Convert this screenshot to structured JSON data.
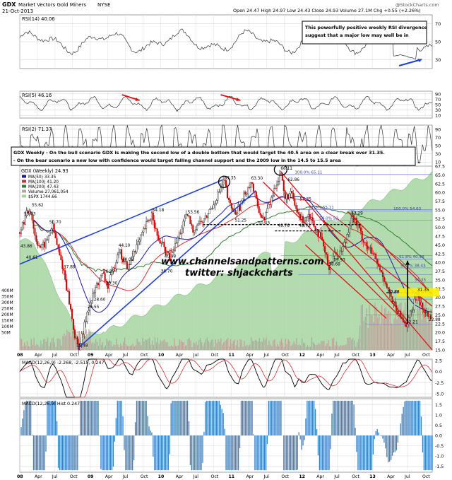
{
  "header": {
    "symbol": "GDX",
    "name": "Market Vectors Gold Miners",
    "exchange": "NYSE",
    "date": "21-Oct-2013",
    "quote": "Open 24.47  High 24.97  Low 24.43  Close 24.93  Volume 27.1M  Chg +0.55 (+2.26%)",
    "watermark": "@StockCharts.com"
  },
  "notes": {
    "rsi_note": [
      "This powerfully positive weekly RSI divergence",
      "suggest that a major low may well be in"
    ],
    "scenario": [
      "GDX Weekly - On the bull scenario GDX is making the second low of a double bottom that would target the 40.5 area on a clear break over 31.35.",
      "- On the bear scenario a new low with confidence would target falling channel support and the 2009 low in the 14.5 to 15.5 area"
    ],
    "site": "www.channelsandpatterns.com",
    "twitter": "twitter: shjackcharts"
  },
  "colors": {
    "price_up": "#111111",
    "price_down": "#cc0000",
    "ma50": "#1a1aa0",
    "ma100": "#cc3333",
    "ma200": "#2e7d32",
    "spx_fill": "#9fd49a",
    "trend_blue": "#1f3fd6",
    "trend_red": "#dd1111",
    "hist": "#3a7fc1",
    "rsi_fill": "#8b5a55"
  },
  "chart_data": {
    "type": "line",
    "title": "GDX (Weekly) 24.93",
    "legend": [
      {
        "key": "ma50",
        "label": "MA(50) 33.35"
      },
      {
        "key": "ma100",
        "label": "MA(100) 41.20"
      },
      {
        "key": "ma200",
        "label": "MA(200) 47.43"
      },
      {
        "key": "volume",
        "label": "Volume 27,061,054"
      },
      {
        "key": "spx",
        "label": "$SPX 1744.66"
      }
    ],
    "legend_placement": "top-left",
    "price_ticks": [
      15.0,
      17.5,
      20.0,
      22.5,
      25.0,
      27.5,
      30.0,
      32.5,
      35.0,
      37.5,
      40.0,
      42.5,
      45.0,
      47.5,
      50.0,
      52.5,
      55.0,
      57.5,
      60.0,
      62.5,
      65.0,
      67.5
    ],
    "ylim": [
      15.0,
      67.5
    ],
    "volume_ticks": [
      "400M",
      "350M",
      "300M",
      "250M",
      "200M",
      "150M",
      "100M",
      "50M"
    ],
    "x_ticks": [
      "08",
      "Apr",
      "Jul",
      "Oct",
      "09",
      "Apr",
      "Jul",
      "Oct",
      "10",
      "Apr",
      "Jul",
      "Oct",
      "11",
      "Apr",
      "Jul",
      "Oct",
      "12",
      "Apr",
      "Jul",
      "Oct",
      "13",
      "Apr",
      "Jul",
      "Oct"
    ],
    "price": [
      [
        2008.0,
        48.6
      ],
      [
        2008.08,
        53.0
      ],
      [
        2008.15,
        55.6
      ],
      [
        2008.22,
        47.0
      ],
      [
        2008.3,
        44.0
      ],
      [
        2008.38,
        45.8
      ],
      [
        2008.46,
        50.7
      ],
      [
        2008.55,
        43.0
      ],
      [
        2008.62,
        37.9
      ],
      [
        2008.7,
        29.0
      ],
      [
        2008.78,
        19.0
      ],
      [
        2008.83,
        15.48
      ],
      [
        2008.9,
        20.0
      ],
      [
        2008.96,
        26.55
      ],
      [
        2009.03,
        30.0
      ],
      [
        2009.1,
        34.0
      ],
      [
        2009.18,
        36.57
      ],
      [
        2009.25,
        33.0
      ],
      [
        2009.33,
        38.0
      ],
      [
        2009.4,
        44.1
      ],
      [
        2009.47,
        40.0
      ],
      [
        2009.55,
        38.5
      ],
      [
        2009.62,
        43.5
      ],
      [
        2009.7,
        46.0
      ],
      [
        2009.78,
        50.0
      ],
      [
        2009.88,
        54.18
      ],
      [
        2009.95,
        47.0
      ],
      [
        2010.05,
        44.0
      ],
      [
        2010.12,
        41.0
      ],
      [
        2010.2,
        44.5
      ],
      [
        2010.3,
        50.0
      ],
      [
        2010.38,
        53.56
      ],
      [
        2010.45,
        49.0
      ],
      [
        2010.52,
        51.0
      ],
      [
        2010.62,
        52.0
      ],
      [
        2010.7,
        55.0
      ],
      [
        2010.8,
        59.0
      ],
      [
        2010.9,
        63.35
      ],
      [
        2010.96,
        57.0
      ],
      [
        2011.05,
        54.0
      ],
      [
        2011.12,
        56.0
      ],
      [
        2011.2,
        60.0
      ],
      [
        2011.28,
        63.3
      ],
      [
        2011.36,
        57.0
      ],
      [
        2011.45,
        52.0
      ],
      [
        2011.55,
        57.0
      ],
      [
        2011.63,
        62.0
      ],
      [
        2011.7,
        66.11
      ],
      [
        2011.76,
        58.0
      ],
      [
        2011.84,
        60.0
      ],
      [
        2011.92,
        55.0
      ],
      [
        2012.0,
        52.0
      ],
      [
        2012.1,
        54.0
      ],
      [
        2012.2,
        50.0
      ],
      [
        2012.3,
        45.0
      ],
      [
        2012.38,
        38.68
      ],
      [
        2012.45,
        42.0
      ],
      [
        2012.55,
        43.0
      ],
      [
        2012.62,
        46.0
      ],
      [
        2012.7,
        53.3
      ],
      [
        2012.78,
        51.0
      ],
      [
        2012.86,
        47.0
      ],
      [
        2012.94,
        44.0
      ],
      [
        2013.02,
        42.0
      ],
      [
        2013.1,
        38.0
      ],
      [
        2013.18,
        35.0
      ],
      [
        2013.26,
        30.0
      ],
      [
        2013.34,
        26.0
      ],
      [
        2013.42,
        24.0
      ],
      [
        2013.48,
        22.21
      ],
      [
        2013.56,
        26.0
      ],
      [
        2013.64,
        31.35
      ],
      [
        2013.7,
        27.0
      ],
      [
        2013.76,
        25.5
      ],
      [
        2013.81,
        24.93
      ]
    ],
    "price_labels": [
      {
        "x": 2008.06,
        "y": 53.03,
        "text": "53.03"
      },
      {
        "x": 2008.17,
        "y": 55.62,
        "text": "55.62"
      },
      {
        "x": 2008.42,
        "y": 50.7,
        "text": "50.70"
      },
      {
        "x": 2008.01,
        "y": 43.86,
        "text": "43.86"
      },
      {
        "x": 2008.09,
        "y": 40.61,
        "text": "40.61"
      },
      {
        "x": 2008.62,
        "y": 37.88,
        "text": "37.88"
      },
      {
        "x": 2008.8,
        "y": 15.48,
        "text": "15.48"
      },
      {
        "x": 2008.96,
        "y": 26.55,
        "text": "26.55"
      },
      {
        "x": 2009.05,
        "y": 28.6,
        "text": "28.60"
      },
      {
        "x": 2009.18,
        "y": 36.57,
        "text": "36.57"
      },
      {
        "x": 2009.22,
        "y": 33.3,
        "text": "33.30"
      },
      {
        "x": 2009.4,
        "y": 44.1,
        "text": "44.10"
      },
      {
        "x": 2009.45,
        "y": 40.02,
        "text": "40.02"
      },
      {
        "x": 2009.88,
        "y": 54.18,
        "text": "54.18"
      },
      {
        "x": 2010.0,
        "y": 36.7,
        "text": "36.70"
      },
      {
        "x": 2010.05,
        "y": 40.98,
        "text": "40.98"
      },
      {
        "x": 2010.38,
        "y": 53.56,
        "text": "53.56"
      },
      {
        "x": 2010.9,
        "y": 63.35,
        "text": "63.35"
      },
      {
        "x": 2011.28,
        "y": 63.3,
        "text": "63.30"
      },
      {
        "x": 2011.05,
        "y": 51.25,
        "text": "51.25"
      },
      {
        "x": 2011.38,
        "y": 50.43,
        "text": "50.43"
      },
      {
        "x": 2011.7,
        "y": 66.11,
        "text": "66.11"
      },
      {
        "x": 2011.8,
        "y": 62.86,
        "text": "62.86"
      },
      {
        "x": 2011.97,
        "y": 57.35,
        "text": "57.35"
      },
      {
        "x": 2011.66,
        "y": 49.76,
        "text": "49.76"
      },
      {
        "x": 2011.96,
        "y": 49.72,
        "text": "49.72"
      },
      {
        "x": 2012.38,
        "y": 38.68,
        "text": "38.68"
      },
      {
        "x": 2012.45,
        "y": 39.93,
        "text": "39.93"
      },
      {
        "x": 2012.7,
        "y": 53.3,
        "text": "53.29"
      },
      {
        "x": 2013.22,
        "y": 30.88,
        "text": "30.88"
      },
      {
        "x": 2013.64,
        "y": 31.35,
        "text": "31.35"
      },
      {
        "x": 2013.48,
        "y": 22.21,
        "text": "22.21"
      },
      {
        "x": 2013.8,
        "y": 22.88,
        "text": "22.88"
      }
    ],
    "fib_labels": [
      {
        "y": 65.11,
        "text": "100.0% 65.11",
        "x": 2011.9
      },
      {
        "y": 55.11,
        "text": "61.8% 55.11",
        "x": 2012.1
      },
      {
        "y": 52.0,
        "text": "50.0% 52.",
        "x": 2012.25
      },
      {
        "y": 54.63,
        "text": "100.0% 54.63",
        "x": 2013.3
      },
      {
        "y": 40.98,
        "text": "61.8% 40.98",
        "x": 2013.38
      },
      {
        "y": 38.43,
        "text": "50.0% 38.43",
        "x": 2013.4
      },
      {
        "y": 30.88,
        "text": "30.88",
        "x": 2013.22
      },
      {
        "y": 34.35,
        "text": "34.35",
        "x": 2013.6
      }
    ],
    "rsi14": {
      "label": "RSI(14) 40.06",
      "ticks": [
        70,
        50,
        30
      ]
    },
    "rsi5": {
      "label": "RSI(5) 46.16",
      "ticks": [
        90,
        70,
        50,
        30,
        10
      ]
    },
    "rsi2": {
      "label": "RSI(2) 71.37",
      "ticks": [
        90,
        70,
        50,
        30,
        10
      ]
    },
    "macd": {
      "label": "MACD(12,26,9) -2.268, -2.515, 0.247",
      "ticks": [
        "2.5",
        "0.0",
        "-2.5",
        "-5.0"
      ]
    },
    "macd_hist": {
      "label": "MACD(12,26,9) Hist 0.247",
      "ticks": [
        "1.5",
        "1.0",
        "0.5",
        "0.0",
        "-0.5",
        "-1.0",
        "-1.5"
      ]
    }
  }
}
